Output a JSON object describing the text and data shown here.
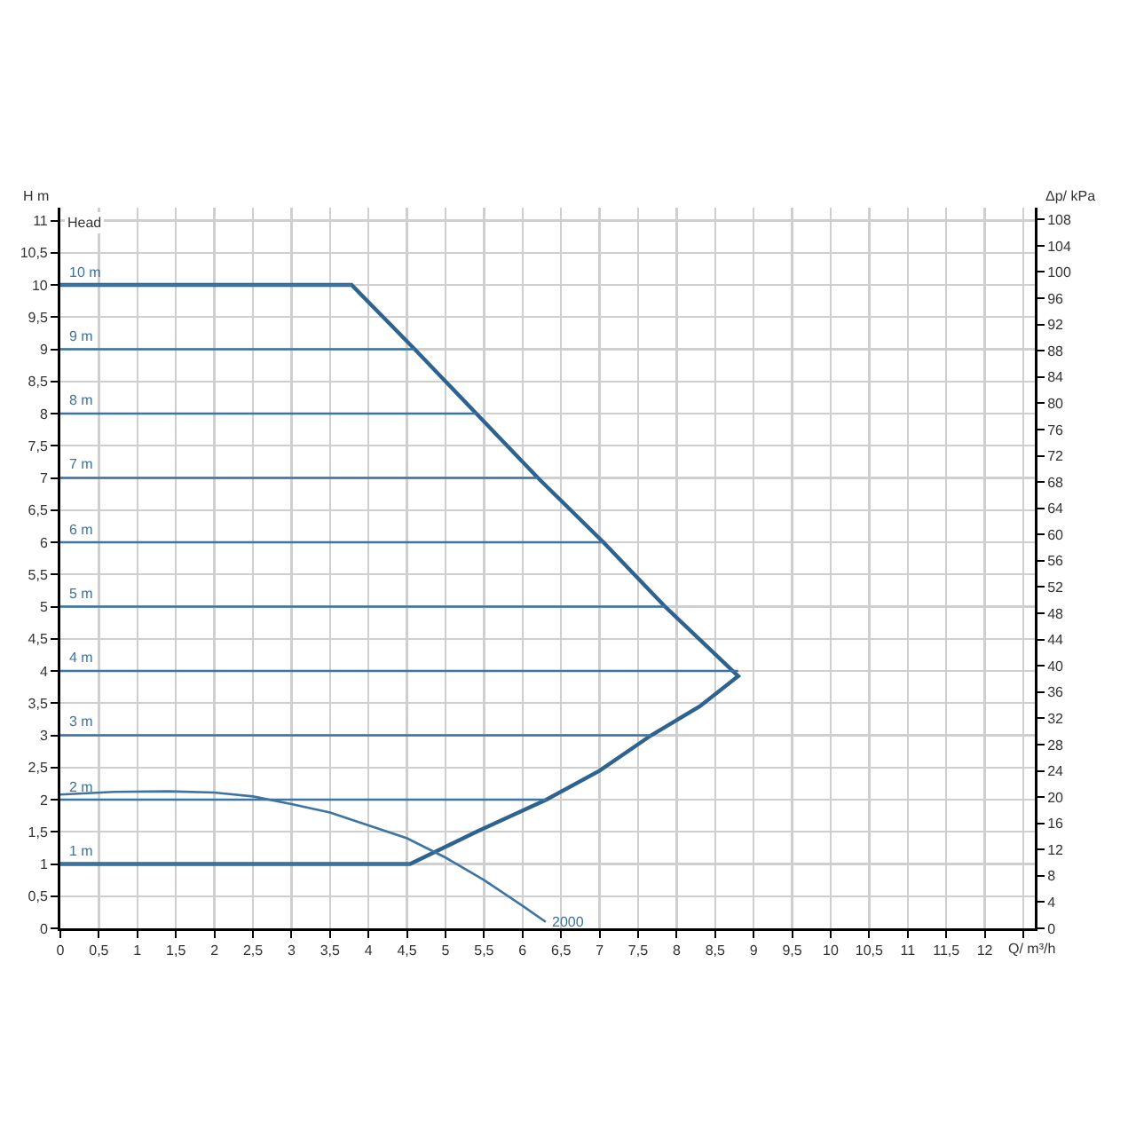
{
  "chart_data": {
    "type": "line",
    "xlabel": "Q/ m³/h",
    "ylabel": "H m",
    "y2label": "Δp/ kPa",
    "annotations": [
      "Head"
    ],
    "xlim": [
      0,
      12.65
    ],
    "ylim": [
      0,
      11.2
    ],
    "y2lim": [
      0,
      109.8
    ],
    "xticks": [
      0,
      {
        "value": 0.5,
        "label": "0,5"
      },
      1,
      {
        "value": 1.5,
        "label": "1,5"
      },
      2,
      {
        "value": 2.5,
        "label": "2,5"
      },
      3,
      {
        "value": 3.5,
        "label": "3,5"
      },
      4,
      {
        "value": 4.5,
        "label": "4,5"
      },
      5,
      {
        "value": 5.5,
        "label": "5,5"
      },
      6,
      {
        "value": 6.5,
        "label": "6,5"
      },
      7,
      {
        "value": 7.5,
        "label": "7,5"
      },
      8,
      {
        "value": 8.5,
        "label": "8,5"
      },
      9,
      {
        "value": 9.5,
        "label": "9,5"
      },
      10,
      {
        "value": 10.5,
        "label": "10,5"
      },
      11,
      {
        "value": 11.5,
        "label": "11,5"
      },
      12,
      {
        "value": 12.5,
        "label": null
      }
    ],
    "yticks": [
      0,
      {
        "value": 0.5,
        "label": "0,5"
      },
      1,
      {
        "value": 1.5,
        "label": "1,5"
      },
      2,
      {
        "value": 2.5,
        "label": "2,5"
      },
      3,
      {
        "value": 3.5,
        "label": "3,5"
      },
      4,
      {
        "value": 4.5,
        "label": "4,5"
      },
      5,
      {
        "value": 5.5,
        "label": "5,5"
      },
      6,
      {
        "value": 6.5,
        "label": "6,5"
      },
      7,
      {
        "value": 7.5,
        "label": "7,5"
      },
      8,
      {
        "value": 8.5,
        "label": "8,5"
      },
      9,
      {
        "value": 9.5,
        "label": "9,5"
      },
      10,
      {
        "value": 10.5,
        "label": "10,5"
      },
      11
    ],
    "y2ticks": [
      0,
      4,
      8,
      12,
      16,
      20,
      24,
      28,
      32,
      36,
      40,
      44,
      48,
      52,
      56,
      60,
      64,
      68,
      72,
      76,
      80,
      84,
      88,
      92,
      96,
      100,
      104,
      108
    ],
    "grid": true,
    "legend": false,
    "marker": "none",
    "line_style": "solid",
    "series": [
      {
        "color": "#2e6390",
        "x": [
          0,
          3.78,
          4.6,
          5.4,
          6.2,
          7.05,
          7.85,
          8.8,
          8.3,
          7.67,
          7.0,
          6.31,
          5.4,
          4.54,
          0
        ],
        "values": [
          10,
          10,
          9,
          8,
          7,
          6,
          5,
          3.92,
          3.45,
          3,
          2.45,
          2,
          1.5,
          1,
          1
        ]
      },
      {
        "name": "10 m",
        "color": "#3d74a3",
        "x": [
          0,
          3.78
        ],
        "values": [
          10,
          10
        ]
      },
      {
        "name": "9 m",
        "color": "#3d74a3",
        "x": [
          0,
          4.6
        ],
        "values": [
          9,
          9
        ]
      },
      {
        "name": "8 m",
        "color": "#3d74a3",
        "x": [
          0,
          5.4
        ],
        "values": [
          8,
          8
        ]
      },
      {
        "name": "7 m",
        "color": "#3d74a3",
        "x": [
          0,
          6.2
        ],
        "values": [
          7,
          7
        ]
      },
      {
        "name": "6 m",
        "color": "#3d74a3",
        "x": [
          0,
          7.05
        ],
        "values": [
          6,
          6
        ]
      },
      {
        "name": "5 m",
        "color": "#3d74a3",
        "x": [
          0,
          7.85
        ],
        "values": [
          5,
          5
        ]
      },
      {
        "name": "4 m",
        "color": "#3d74a3",
        "x": [
          0,
          8.8
        ],
        "values": [
          4,
          4
        ]
      },
      {
        "name": "3 m",
        "color": "#3d74a3",
        "x": [
          0,
          7.67
        ],
        "values": [
          3,
          3
        ]
      },
      {
        "name": "2 m",
        "color": "#3d74a3",
        "x": [
          0,
          6.31
        ],
        "values": [
          2,
          2
        ]
      },
      {
        "name": "1 m",
        "color": "#3d74a3",
        "x": [
          0,
          4.54
        ],
        "values": [
          1,
          1
        ]
      },
      {
        "name": "2000",
        "color": "#3d74a3",
        "x": [
          0,
          0.7,
          1.4,
          2,
          2.5,
          3,
          3.5,
          4,
          4.5,
          5,
          5.5,
          6,
          6.3
        ],
        "values": [
          2.08,
          2.12,
          2.13,
          2.11,
          2.05,
          1.93,
          1.8,
          1.6,
          1.4,
          1.1,
          0.75,
          0.35,
          0.1
        ]
      }
    ]
  }
}
